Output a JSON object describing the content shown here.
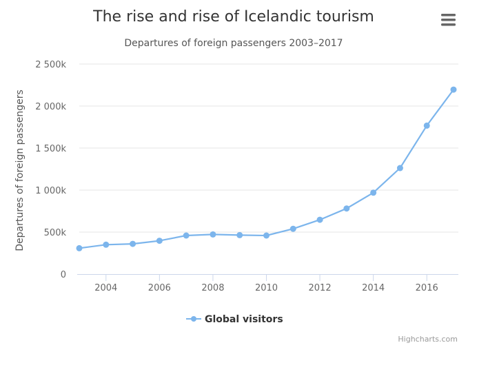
{
  "chart_data": {
    "type": "line",
    "title": "The rise and rise of Icelandic tourism",
    "subtitle": "Departures of foreign passengers 2003–2017",
    "ylabel": "Departures of foreign passengers",
    "xlabel": "",
    "ylim": [
      0,
      2500000
    ],
    "xlim": [
      2003,
      2017
    ],
    "y_ticks": [
      0,
      500000,
      1000000,
      1500000,
      2000000,
      2500000
    ],
    "y_tick_labels": [
      "0",
      "500k",
      "1 000k",
      "1 500k",
      "2 000k",
      "2 500k"
    ],
    "x_ticks": [
      2004,
      2006,
      2008,
      2010,
      2012,
      2014,
      2016
    ],
    "x_tick_labels": [
      "2004",
      "2006",
      "2008",
      "2010",
      "2012",
      "2014",
      "2016"
    ],
    "grid": "horizontal",
    "series": [
      {
        "name": "Global visitors",
        "color": "#7cb5ec",
        "x": [
          2003,
          2004,
          2005,
          2006,
          2007,
          2008,
          2009,
          2010,
          2011,
          2012,
          2013,
          2014,
          2015,
          2016,
          2017
        ],
        "values": [
          308000,
          350000,
          360000,
          397000,
          459000,
          472000,
          464000,
          459000,
          539000,
          647000,
          781000,
          969000,
          1262000,
          1767000,
          2196000
        ]
      }
    ],
    "legend": "bottom-center",
    "credits": "Highcharts.com"
  },
  "ui": {
    "menu_icon": "hamburger-menu-icon"
  }
}
